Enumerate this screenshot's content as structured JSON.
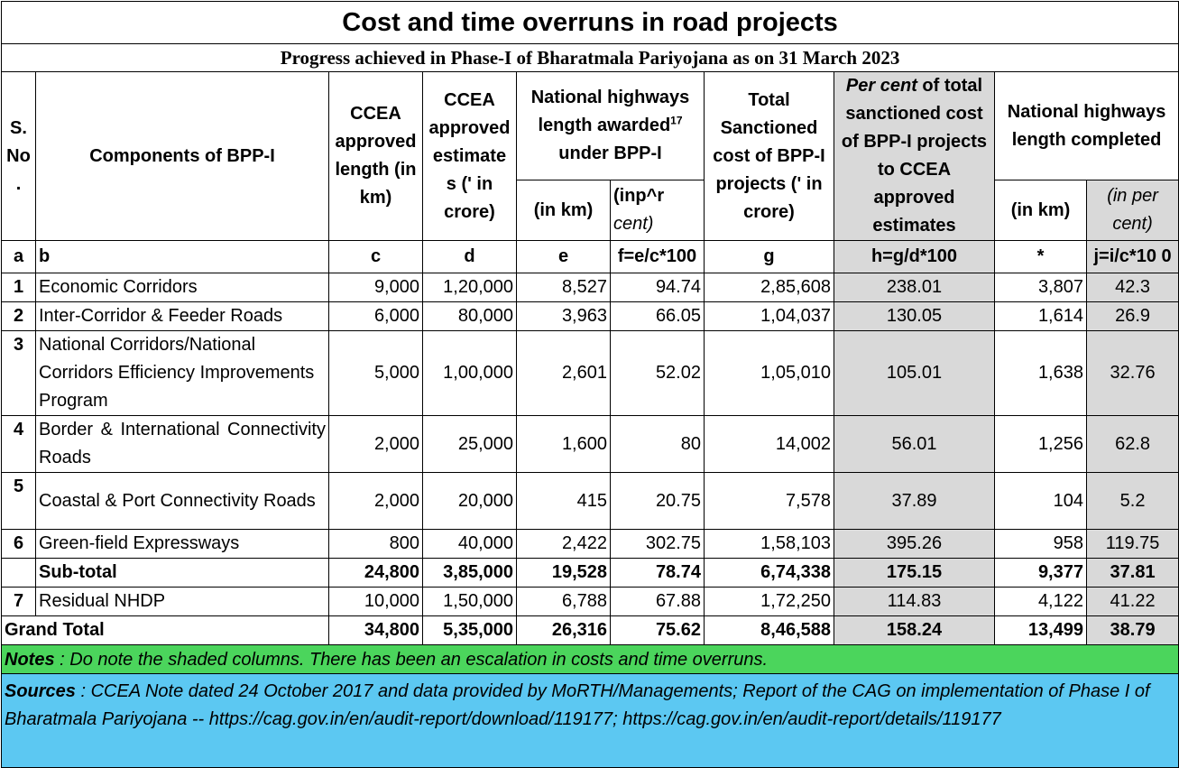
{
  "title": "Cost and time overruns in road projects",
  "subtitle": "Progress achieved in Phase-I of Bharatmala Pariyojana as on 31 March 2023",
  "header": {
    "sno": "S. No .",
    "component": "Components of BPP-I",
    "ccea_length": "CCEA approved length (in km)",
    "ccea_estimate": "CCEA approved estimate s (' in crore)",
    "nh_awarded_main": "National highways length awarded",
    "nh_awarded_sup": "17",
    "nh_awarded_tail": "under BPP-I",
    "nh_awarded_km": "(in km)",
    "nh_awarded_pct_a": "(inp^r",
    "nh_awarded_pct_b": "cent)",
    "total_cost": "Total Sanctioned cost of BPP-I projects (' in crore)",
    "pct_cost_italic": "Per cent",
    "pct_cost_rest": " of total sanctioned cost of BPP-I projects to CCEA approved estimates",
    "nh_completed": "National highways length completed",
    "nh_completed_km": "(in km)",
    "nh_completed_pct": "(in per cent)"
  },
  "letters": [
    "a",
    "b",
    "c",
    "d",
    "e",
    "f=e/c*100",
    "g",
    "h=g/d*100",
    "*",
    "j=i/c*10 0"
  ],
  "rows": [
    {
      "sno": "1",
      "component": "Economic Corridors",
      "c": "9,000",
      "d": "1,20,000",
      "e": "8,527",
      "f": "94.74",
      "g": "2,85,608",
      "h": "238.01",
      "i": "3,807",
      "j": "42.3"
    },
    {
      "sno": "2",
      "component": "Inter-Corridor & Feeder Roads",
      "c": "6,000",
      "d": "80,000",
      "e": "3,963",
      "f": "66.05",
      "g": "1,04,037",
      "h": "130.05",
      "i": "1,614",
      "j": "26.9"
    },
    {
      "sno": "3",
      "component": "National Corridors/National Corridors Efficiency Improvements Program",
      "c": "5,000",
      "d": "1,00,000",
      "e": "2,601",
      "f": "52.02",
      "g": "1,05,010",
      "h": "105.01",
      "i": "1,638",
      "j": "32.76"
    },
    {
      "sno": "4",
      "component": "Border & International Connectivity Roads",
      "c": "2,000",
      "d": "25,000",
      "e": "1,600",
      "f": "80",
      "g": "14,002",
      "h": "56.01",
      "i": "1,256",
      "j": "62.8"
    },
    {
      "sno": "5",
      "component": "Coastal & Port Connectivity Roads",
      "c": "2,000",
      "d": "20,000",
      "e": "415",
      "f": "20.75",
      "g": "7,578",
      "h": "37.89",
      "i": "104",
      "j": "5.2"
    },
    {
      "sno": "6",
      "component": "Green-field Expressways",
      "c": "800",
      "d": "40,000",
      "e": "2,422",
      "f": "302.75",
      "g": "1,58,103",
      "h": "395.26",
      "i": "958",
      "j": "119.75"
    }
  ],
  "subtotal": {
    "label": "Sub-total",
    "c": "24,800",
    "d": "3,85,000",
    "e": "19,528",
    "f": "78.74",
    "g": "6,74,338",
    "h": "175.15",
    "i": "9,377",
    "j": "37.81"
  },
  "row7": {
    "sno": "7",
    "component": "Residual NHDP",
    "c": "10,000",
    "d": "1,50,000",
    "e": "6,788",
    "f": "67.88",
    "g": "1,72,250",
    "h": "114.83",
    "i": "4,122",
    "j": "41.22"
  },
  "grandtotal": {
    "label": "Grand Total",
    "c": "34,800",
    "d": "5,35,000",
    "e": "26,316",
    "f": "75.62",
    "g": "8,46,588",
    "h": "158.24",
    "i": "13,499",
    "j": "38.79"
  },
  "notes": {
    "label": "Notes",
    "text": " : Do note the shaded columns.  There has been an escalation in costs and time overruns."
  },
  "sources": {
    "label": "Sources",
    "text": " : CCEA Note dated 24 October 2017 and data provided by MoRTH/Managements; Report of the CAG on implementation of Phase I of Bharatmala Pariyojana -- https://cag.gov.in/en/audit-report/download/119177; https://cag.gov.in/en/audit-report/details/119177"
  },
  "colors": {
    "shade": "#d9d9d9",
    "notes_bg": "#4bd55c",
    "sources_bg": "#5cc8f2"
  }
}
